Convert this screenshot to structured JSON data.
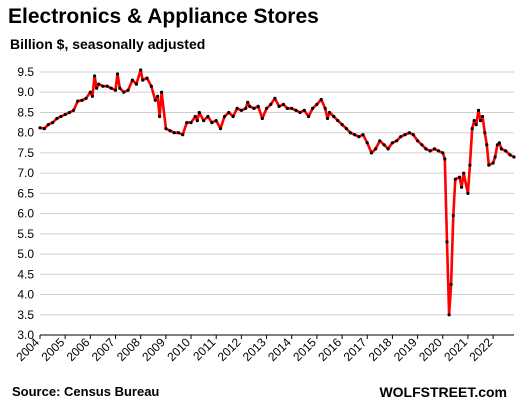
{
  "chart_data": {
    "type": "line",
    "title": "Electronics & Appliance Stores",
    "subtitle": "Billion $, seasonally adjusted",
    "xlabel": "",
    "ylabel": "",
    "xlim": [
      2004,
      2022.83
    ],
    "ylim": [
      3.0,
      9.5
    ],
    "x_ticks": [
      "2004",
      "2005",
      "2006",
      "2007",
      "2008",
      "2009",
      "2010",
      "2011",
      "2012",
      "2013",
      "2014",
      "2015",
      "2016",
      "2017",
      "2018",
      "2019",
      "2020",
      "2021",
      "2022"
    ],
    "y_ticks": [
      "3.0",
      "3.5",
      "4.0",
      "4.5",
      "5.0",
      "5.5",
      "6.0",
      "6.5",
      "7.0",
      "7.5",
      "8.0",
      "8.5",
      "9.0",
      "9.5"
    ],
    "grid": "horizontal",
    "series": [
      {
        "name": "",
        "color": "#ff0000",
        "marker_color": "#000000",
        "points": [
          [
            2004.0,
            8.12
          ],
          [
            2004.17,
            8.1
          ],
          [
            2004.33,
            8.2
          ],
          [
            2004.5,
            8.25
          ],
          [
            2004.67,
            8.35
          ],
          [
            2004.83,
            8.4
          ],
          [
            2005.0,
            8.45
          ],
          [
            2005.17,
            8.5
          ],
          [
            2005.33,
            8.55
          ],
          [
            2005.5,
            8.78
          ],
          [
            2005.67,
            8.8
          ],
          [
            2005.83,
            8.85
          ],
          [
            2006.0,
            9.0
          ],
          [
            2006.08,
            8.9
          ],
          [
            2006.17,
            9.4
          ],
          [
            2006.25,
            9.1
          ],
          [
            2006.33,
            9.2
          ],
          [
            2006.5,
            9.15
          ],
          [
            2006.67,
            9.15
          ],
          [
            2006.83,
            9.1
          ],
          [
            2007.0,
            9.05
          ],
          [
            2007.08,
            9.45
          ],
          [
            2007.17,
            9.1
          ],
          [
            2007.33,
            9.0
          ],
          [
            2007.5,
            9.05
          ],
          [
            2007.67,
            9.3
          ],
          [
            2007.83,
            9.2
          ],
          [
            2008.0,
            9.55
          ],
          [
            2008.08,
            9.3
          ],
          [
            2008.25,
            9.35
          ],
          [
            2008.42,
            9.15
          ],
          [
            2008.58,
            8.8
          ],
          [
            2008.67,
            8.9
          ],
          [
            2008.75,
            8.4
          ],
          [
            2008.83,
            9.0
          ],
          [
            2009.0,
            8.1
          ],
          [
            2009.17,
            8.05
          ],
          [
            2009.33,
            8.0
          ],
          [
            2009.5,
            8.0
          ],
          [
            2009.67,
            7.95
          ],
          [
            2009.83,
            8.25
          ],
          [
            2010.0,
            8.25
          ],
          [
            2010.17,
            8.4
          ],
          [
            2010.25,
            8.3
          ],
          [
            2010.33,
            8.5
          ],
          [
            2010.5,
            8.3
          ],
          [
            2010.67,
            8.4
          ],
          [
            2010.83,
            8.25
          ],
          [
            2011.0,
            8.3
          ],
          [
            2011.17,
            8.1
          ],
          [
            2011.33,
            8.4
          ],
          [
            2011.5,
            8.5
          ],
          [
            2011.67,
            8.4
          ],
          [
            2011.83,
            8.6
          ],
          [
            2012.0,
            8.55
          ],
          [
            2012.17,
            8.6
          ],
          [
            2012.25,
            8.75
          ],
          [
            2012.33,
            8.65
          ],
          [
            2012.5,
            8.6
          ],
          [
            2012.67,
            8.65
          ],
          [
            2012.83,
            8.35
          ],
          [
            2013.0,
            8.6
          ],
          [
            2013.17,
            8.7
          ],
          [
            2013.33,
            8.85
          ],
          [
            2013.5,
            8.65
          ],
          [
            2013.67,
            8.7
          ],
          [
            2013.83,
            8.6
          ],
          [
            2014.0,
            8.6
          ],
          [
            2014.17,
            8.55
          ],
          [
            2014.33,
            8.5
          ],
          [
            2014.5,
            8.55
          ],
          [
            2014.67,
            8.4
          ],
          [
            2014.83,
            8.6
          ],
          [
            2015.0,
            8.7
          ],
          [
            2015.17,
            8.82
          ],
          [
            2015.33,
            8.6
          ],
          [
            2015.42,
            8.35
          ],
          [
            2015.5,
            8.5
          ],
          [
            2015.67,
            8.4
          ],
          [
            2015.83,
            8.3
          ],
          [
            2016.0,
            8.2
          ],
          [
            2016.17,
            8.1
          ],
          [
            2016.33,
            8.0
          ],
          [
            2016.5,
            7.95
          ],
          [
            2016.67,
            7.9
          ],
          [
            2016.83,
            7.95
          ],
          [
            2017.0,
            7.75
          ],
          [
            2017.17,
            7.5
          ],
          [
            2017.33,
            7.6
          ],
          [
            2017.5,
            7.8
          ],
          [
            2017.67,
            7.7
          ],
          [
            2017.83,
            7.6
          ],
          [
            2018.0,
            7.75
          ],
          [
            2018.17,
            7.8
          ],
          [
            2018.33,
            7.9
          ],
          [
            2018.5,
            7.95
          ],
          [
            2018.67,
            8.0
          ],
          [
            2018.83,
            7.95
          ],
          [
            2019.0,
            7.8
          ],
          [
            2019.17,
            7.7
          ],
          [
            2019.33,
            7.6
          ],
          [
            2019.5,
            7.55
          ],
          [
            2019.67,
            7.6
          ],
          [
            2019.83,
            7.55
          ],
          [
            2020.0,
            7.5
          ],
          [
            2020.08,
            7.35
          ],
          [
            2020.17,
            5.3
          ],
          [
            2020.25,
            3.5
          ],
          [
            2020.33,
            4.25
          ],
          [
            2020.42,
            5.95
          ],
          [
            2020.5,
            6.85
          ],
          [
            2020.67,
            6.9
          ],
          [
            2020.75,
            6.65
          ],
          [
            2020.83,
            7.0
          ],
          [
            2021.0,
            6.5
          ],
          [
            2021.08,
            7.2
          ],
          [
            2021.17,
            8.1
          ],
          [
            2021.25,
            8.3
          ],
          [
            2021.33,
            8.2
          ],
          [
            2021.42,
            8.55
          ],
          [
            2021.5,
            8.3
          ],
          [
            2021.58,
            8.4
          ],
          [
            2021.67,
            8.0
          ],
          [
            2021.75,
            7.7
          ],
          [
            2021.83,
            7.2
          ],
          [
            2022.0,
            7.25
          ],
          [
            2022.08,
            7.4
          ],
          [
            2022.17,
            7.7
          ],
          [
            2022.25,
            7.75
          ],
          [
            2022.33,
            7.6
          ],
          [
            2022.5,
            7.55
          ],
          [
            2022.67,
            7.45
          ],
          [
            2022.83,
            7.4
          ]
        ]
      }
    ]
  },
  "footer": {
    "source": "Source: Census Bureau",
    "brand": "WOLFSTREET.com"
  }
}
